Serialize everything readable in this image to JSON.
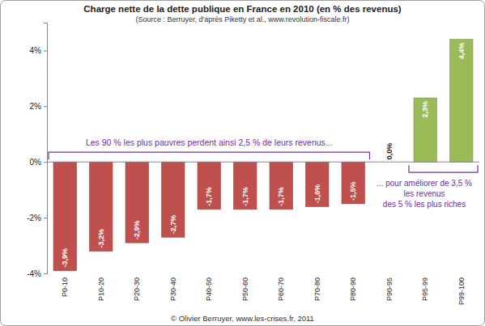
{
  "chart_data": {
    "type": "bar",
    "title": "Charge nette de la dette publique en France en 2010 (en % des revenus)",
    "subtitle": "(Source : Berruyer, d'après Piketty et al., www.revolution-fiscale.fr)",
    "categories": [
      "P0-10",
      "P10-20",
      "P20-30",
      "P30-40",
      "P40-50",
      "P50-60",
      "P60-70",
      "P70-80",
      "P80-90",
      "P90-95",
      "P95-99",
      "P99-100"
    ],
    "values": [
      -3.9,
      -3.2,
      -2.9,
      -2.7,
      -1.7,
      -1.7,
      -1.7,
      -1.6,
      -1.5,
      0.0,
      2.3,
      4.4
    ],
    "value_labels": [
      "-3,9%",
      "-3,2%",
      "-2,9%",
      "-2,7%",
      "-1,7%",
      "-1,7%",
      "-1,7%",
      "-1,6%",
      "-1,5%",
      "0,0%",
      "2,3%",
      "4,4%"
    ],
    "colors": [
      "#c0504d",
      "#c0504d",
      "#c0504d",
      "#c0504d",
      "#c0504d",
      "#c0504d",
      "#c0504d",
      "#c0504d",
      "#c0504d",
      "#9bbb59",
      "#9bbb59",
      "#9bbb59"
    ],
    "ylim": [
      -4,
      5
    ],
    "yticks": [
      {
        "value": -4,
        "label": "-4%"
      },
      {
        "value": -2,
        "label": "-2%"
      },
      {
        "value": 0,
        "label": "0%"
      },
      {
        "value": 2,
        "label": "2%"
      },
      {
        "value": 4,
        "label": "4%"
      }
    ],
    "grid": false,
    "data_labels": true,
    "annotations": [
      "Les 90 % les plus pauvres perdent ainsi 2,5 % de leurs revenus...",
      "... pour améliorer de 3,5 %",
      "les revenus",
      "des 5 % les plus riches",
      "© Olivier Berruyer, www.les-crises.fr, 2011"
    ]
  }
}
